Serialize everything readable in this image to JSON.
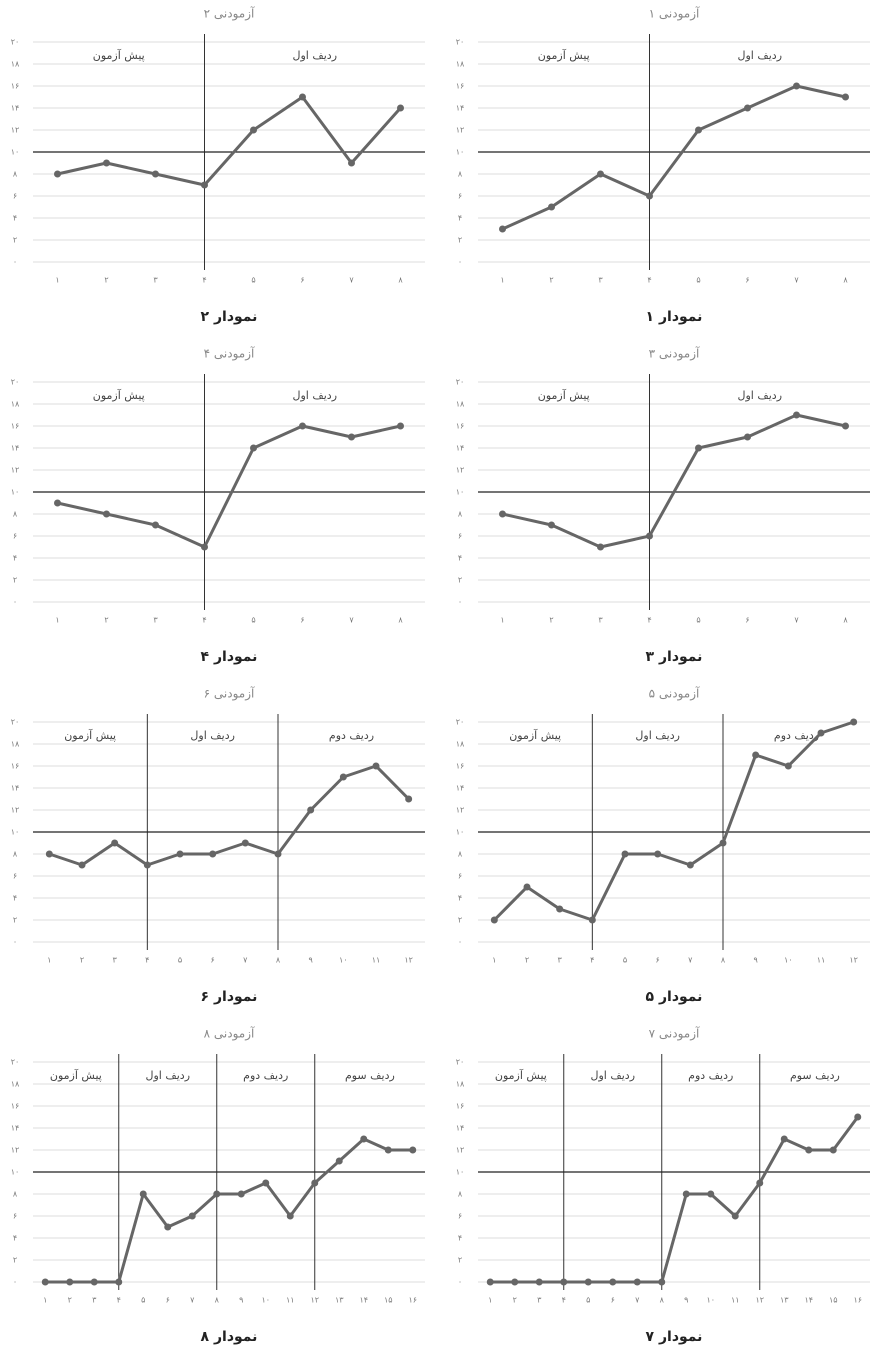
{
  "chart_data": [
    {
      "type": "line",
      "title": "آزمودنی ۱",
      "caption": "نمودار ۱",
      "categories": [
        "۱",
        "۲",
        "۳",
        "۴",
        "۵",
        "۶",
        "۷",
        "۸"
      ],
      "series": [
        {
          "color": "#666666",
          "values": [
            3,
            5,
            8,
            6,
            12,
            14,
            16,
            15
          ]
        }
      ],
      "phases": [
        "پیش آزمون",
        "ردیف اول"
      ],
      "phase_lines": [
        4
      ],
      "reference_line": 10,
      "ylim": [
        0,
        20
      ],
      "yticks": [
        {
          "value": 0,
          "label": "۰"
        },
        {
          "value": 2,
          "label": "۲"
        },
        {
          "value": 4,
          "label": "۴"
        },
        {
          "value": 6,
          "label": "۶"
        },
        {
          "value": 8,
          "label": "۸"
        },
        {
          "value": 10,
          "label": "۱۰"
        },
        {
          "value": 12,
          "label": "۱۲"
        },
        {
          "value": 14,
          "label": "۱۴"
        },
        {
          "value": 16,
          "label": "۱۶"
        },
        {
          "value": 18,
          "label": "۱۸"
        },
        {
          "value": 20,
          "label": "۲۰"
        }
      ],
      "grid": true
    },
    {
      "type": "line",
      "title": "آزمودنی ۲",
      "caption": "نمودار ۲",
      "categories": [
        "۱",
        "۲",
        "۳",
        "۴",
        "۵",
        "۶",
        "۷",
        "۸"
      ],
      "series": [
        {
          "color": "#666666",
          "values": [
            8,
            9,
            8,
            7,
            12,
            15,
            9,
            14
          ]
        }
      ],
      "phases": [
        "پیش آزمون",
        "ردیف اول"
      ],
      "phase_lines": [
        4
      ],
      "reference_line": 10,
      "ylim": [
        0,
        20
      ],
      "yticks": [
        {
          "value": 0,
          "label": "۰"
        },
        {
          "value": 2,
          "label": "۲"
        },
        {
          "value": 4,
          "label": "۴"
        },
        {
          "value": 6,
          "label": "۶"
        },
        {
          "value": 8,
          "label": "۸"
        },
        {
          "value": 10,
          "label": "۱۰"
        },
        {
          "value": 12,
          "label": "۱۲"
        },
        {
          "value": 14,
          "label": "۱۴"
        },
        {
          "value": 16,
          "label": "۱۶"
        },
        {
          "value": 18,
          "label": "۱۸"
        },
        {
          "value": 20,
          "label": "۲۰"
        }
      ],
      "grid": true
    },
    {
      "type": "line",
      "title": "آزمودنی ۳",
      "caption": "نمودار ۳",
      "categories": [
        "۱",
        "۲",
        "۳",
        "۴",
        "۵",
        "۶",
        "۷",
        "۸"
      ],
      "series": [
        {
          "color": "#666666",
          "values": [
            8,
            7,
            5,
            6,
            14,
            15,
            17,
            16
          ]
        }
      ],
      "phases": [
        "پیش آزمون",
        "ردیف اول"
      ],
      "phase_lines": [
        4
      ],
      "reference_line": 10,
      "ylim": [
        0,
        20
      ],
      "yticks": [
        {
          "value": 0,
          "label": "۰"
        },
        {
          "value": 2,
          "label": "۲"
        },
        {
          "value": 4,
          "label": "۴"
        },
        {
          "value": 6,
          "label": "۶"
        },
        {
          "value": 8,
          "label": "۸"
        },
        {
          "value": 10,
          "label": "۱۰"
        },
        {
          "value": 12,
          "label": "۱۲"
        },
        {
          "value": 14,
          "label": "۱۴"
        },
        {
          "value": 16,
          "label": "۱۶"
        },
        {
          "value": 18,
          "label": "۱۸"
        },
        {
          "value": 20,
          "label": "۲۰"
        }
      ],
      "grid": true
    },
    {
      "type": "line",
      "title": "آزمودنی ۴",
      "caption": "نمودار ۴",
      "categories": [
        "۱",
        "۲",
        "۳",
        "۴",
        "۵",
        "۶",
        "۷",
        "۸"
      ],
      "series": [
        {
          "color": "#666666",
          "values": [
            9,
            8,
            7,
            5,
            14,
            16,
            15,
            16
          ]
        }
      ],
      "phases": [
        "پیش آزمون",
        "ردیف اول"
      ],
      "phase_lines": [
        4
      ],
      "reference_line": 10,
      "ylim": [
        0,
        20
      ],
      "yticks": [
        {
          "value": 0,
          "label": "۰"
        },
        {
          "value": 2,
          "label": "۲"
        },
        {
          "value": 4,
          "label": "۴"
        },
        {
          "value": 6,
          "label": "۶"
        },
        {
          "value": 8,
          "label": "۸"
        },
        {
          "value": 10,
          "label": "۱۰"
        },
        {
          "value": 12,
          "label": "۱۲"
        },
        {
          "value": 14,
          "label": "۱۴"
        },
        {
          "value": 16,
          "label": "۱۶"
        },
        {
          "value": 18,
          "label": "۱۸"
        },
        {
          "value": 20,
          "label": "۲۰"
        }
      ],
      "grid": true
    },
    {
      "type": "line",
      "title": "آزمودنی ۵",
      "caption": "نمودار ۵",
      "categories": [
        "۱",
        "۲",
        "۳",
        "۴",
        "۵",
        "۶",
        "۷",
        "۸",
        "۹",
        "۱۰",
        "۱۱",
        "۱۲"
      ],
      "series": [
        {
          "color": "#666666",
          "values": [
            2,
            5,
            3,
            2,
            8,
            8,
            7,
            9,
            17,
            16,
            19,
            20
          ]
        }
      ],
      "phases": [
        "پیش آزمون",
        "ردیف اول",
        "ردیف دوم"
      ],
      "phase_lines": [
        4,
        8
      ],
      "reference_line": 10,
      "ylim": [
        0,
        20
      ],
      "yticks": [
        {
          "value": 0,
          "label": "۰"
        },
        {
          "value": 2,
          "label": "۲"
        },
        {
          "value": 4,
          "label": "۴"
        },
        {
          "value": 6,
          "label": "۶"
        },
        {
          "value": 8,
          "label": "۸"
        },
        {
          "value": 10,
          "label": "۱۰"
        },
        {
          "value": 12,
          "label": "۱۲"
        },
        {
          "value": 14,
          "label": "۱۴"
        },
        {
          "value": 16,
          "label": "۱۶"
        },
        {
          "value": 18,
          "label": "۱۸"
        },
        {
          "value": 20,
          "label": "۲۰"
        }
      ],
      "grid": true
    },
    {
      "type": "line",
      "title": "آزمودنی ۶",
      "caption": "نمودار ۶",
      "categories": [
        "۱",
        "۲",
        "۳",
        "۴",
        "۵",
        "۶",
        "۷",
        "۸",
        "۹",
        "۱۰",
        "۱۱",
        "۱۲"
      ],
      "series": [
        {
          "color": "#666666",
          "values": [
            8,
            7,
            9,
            7,
            8,
            8,
            9,
            8,
            12,
            15,
            16,
            13
          ]
        }
      ],
      "phases": [
        "پیش آزمون",
        "ردیف اول",
        "ردیف دوم"
      ],
      "phase_lines": [
        4,
        8
      ],
      "reference_line": 10,
      "ylim": [
        0,
        20
      ],
      "yticks": [
        {
          "value": 0,
          "label": "۰"
        },
        {
          "value": 2,
          "label": "۲"
        },
        {
          "value": 4,
          "label": "۴"
        },
        {
          "value": 6,
          "label": "۶"
        },
        {
          "value": 8,
          "label": "۸"
        },
        {
          "value": 10,
          "label": "۱۰"
        },
        {
          "value": 12,
          "label": "۱۲"
        },
        {
          "value": 14,
          "label": "۱۴"
        },
        {
          "value": 16,
          "label": "۱۶"
        },
        {
          "value": 18,
          "label": "۱۸"
        },
        {
          "value": 20,
          "label": "۲۰"
        }
      ],
      "grid": true
    },
    {
      "type": "line",
      "title": "آزمودنی ۷",
      "caption": "نمودار ۷",
      "categories": [
        "۱",
        "۲",
        "۳",
        "۴",
        "۵",
        "۶",
        "۷",
        "۸",
        "۹",
        "۱۰",
        "۱۱",
        "۱۲",
        "۱۳",
        "۱۴",
        "۱۵",
        "۱۶"
      ],
      "series": [
        {
          "color": "#666666",
          "values": [
            0,
            0,
            0,
            0,
            0,
            0,
            0,
            0,
            8,
            8,
            6,
            9,
            13,
            12,
            12,
            15
          ]
        }
      ],
      "phases": [
        "پیش آزمون",
        "ردیف اول",
        "ردیف دوم",
        "ردیف سوم"
      ],
      "phase_lines": [
        4,
        8,
        12
      ],
      "reference_line": 10,
      "ylim": [
        0,
        20
      ],
      "yticks": [
        {
          "value": 0,
          "label": "۰"
        },
        {
          "value": 2,
          "label": "۲"
        },
        {
          "value": 4,
          "label": "۴"
        },
        {
          "value": 6,
          "label": "۶"
        },
        {
          "value": 8,
          "label": "۸"
        },
        {
          "value": 10,
          "label": "۱۰"
        },
        {
          "value": 12,
          "label": "۱۲"
        },
        {
          "value": 14,
          "label": "۱۴"
        },
        {
          "value": 16,
          "label": "۱۶"
        },
        {
          "value": 18,
          "label": "۱۸"
        },
        {
          "value": 20,
          "label": "۲۰"
        }
      ],
      "grid": true
    },
    {
      "type": "line",
      "title": "آزمودنی ۸",
      "caption": "نمودار ۸",
      "categories": [
        "۱",
        "۲",
        "۳",
        "۴",
        "۵",
        "۶",
        "۷",
        "۸",
        "۹",
        "۱۰",
        "۱۱",
        "۱۲",
        "۱۳",
        "۱۴",
        "۱۵",
        "۱۶"
      ],
      "series": [
        {
          "color": "#666666",
          "values": [
            0,
            0,
            0,
            0,
            8,
            5,
            6,
            8,
            8,
            9,
            6,
            9,
            11,
            13,
            12,
            12
          ]
        }
      ],
      "phases": [
        "پیش آزمون",
        "ردیف اول",
        "ردیف دوم",
        "ردیف سوم"
      ],
      "phase_lines": [
        4,
        8,
        12
      ],
      "reference_line": 10,
      "ylim": [
        0,
        20
      ],
      "yticks": [
        {
          "value": 0,
          "label": "۰"
        },
        {
          "value": 2,
          "label": "۲"
        },
        {
          "value": 4,
          "label": "۴"
        },
        {
          "value": 6,
          "label": "۶"
        },
        {
          "value": 8,
          "label": "۸"
        },
        {
          "value": 10,
          "label": "۱۰"
        },
        {
          "value": 12,
          "label": "۱۲"
        },
        {
          "value": 14,
          "label": "۱۴"
        },
        {
          "value": 16,
          "label": "۱۶"
        },
        {
          "value": 18,
          "label": "۱۸"
        },
        {
          "value": 20,
          "label": "۲۰"
        }
      ],
      "grid": true
    }
  ]
}
